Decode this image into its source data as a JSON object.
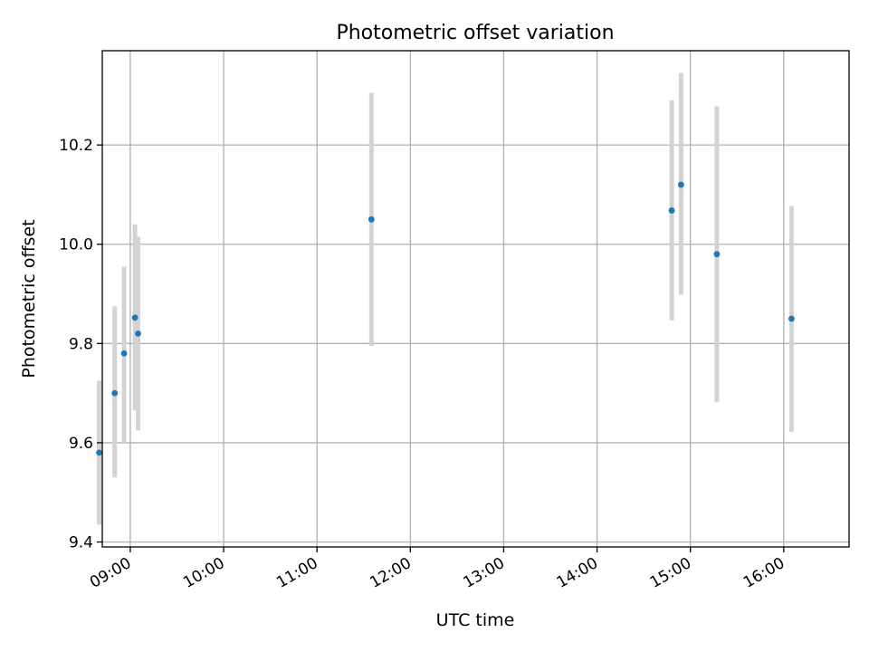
{
  "chart_data": {
    "type": "scatter",
    "title": "Photometric offset variation",
    "xlabel": "UTC time",
    "ylabel": "Photometric offset",
    "x_tick_labels": [
      "09:00",
      "10:00",
      "11:00",
      "12:00",
      "13:00",
      "14:00",
      "15:00",
      "16:00"
    ],
    "x_ticks": [
      "09:00",
      "10:00",
      "11:00",
      "12:00",
      "13:00",
      "14:00",
      "15:00",
      "16:00"
    ],
    "xlim": [
      "08:42",
      "16:42"
    ],
    "ylim": [
      9.39,
      10.39
    ],
    "y_ticks": [
      9.4,
      9.6,
      9.8,
      10.0,
      10.2
    ],
    "y_tick_labels": [
      "9.4",
      "9.6",
      "9.8",
      "10.0",
      "10.2"
    ],
    "grid": true,
    "marker_color": "#1f77b4",
    "errorbar_color": "#d3d3d3",
    "points": [
      {
        "x": "08:40",
        "y": 9.58,
        "ylow": 9.435,
        "yhigh": 9.725
      },
      {
        "x": "08:50",
        "y": 9.7,
        "ylow": 9.53,
        "yhigh": 9.875
      },
      {
        "x": "08:56",
        "y": 9.78,
        "ylow": 9.6,
        "yhigh": 9.955
      },
      {
        "x": "09:03",
        "y": 9.852,
        "ylow": 9.665,
        "yhigh": 10.04
      },
      {
        "x": "09:05",
        "y": 9.82,
        "ylow": 9.625,
        "yhigh": 10.015
      },
      {
        "x": "11:35",
        "y": 10.05,
        "ylow": 9.795,
        "yhigh": 10.305
      },
      {
        "x": "14:48",
        "y": 10.068,
        "ylow": 9.847,
        "yhigh": 10.29
      },
      {
        "x": "14:54",
        "y": 10.12,
        "ylow": 9.898,
        "yhigh": 10.345
      },
      {
        "x": "15:17",
        "y": 9.98,
        "ylow": 9.682,
        "yhigh": 10.278
      },
      {
        "x": "16:05",
        "y": 9.85,
        "ylow": 9.622,
        "yhigh": 10.077
      }
    ]
  }
}
